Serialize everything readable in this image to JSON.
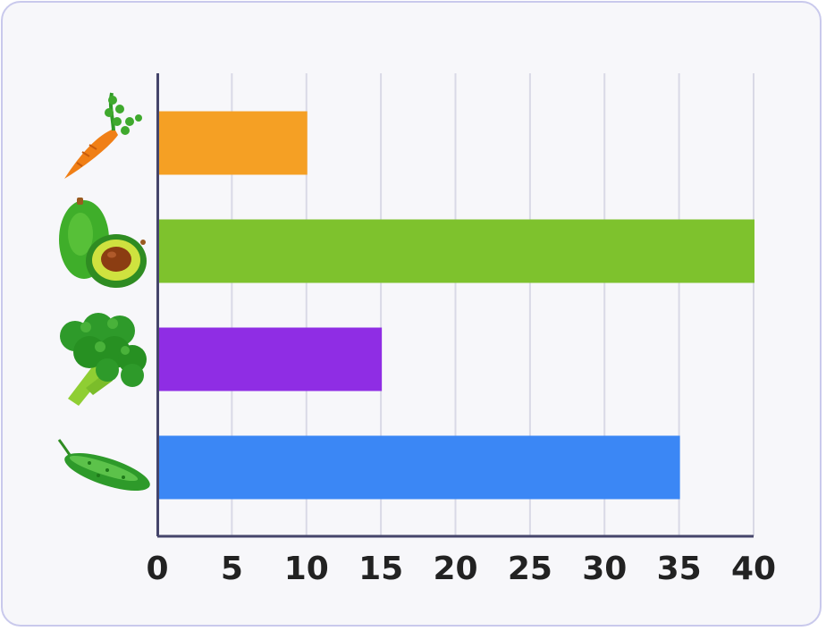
{
  "chart_data": {
    "type": "bar",
    "orientation": "horizontal",
    "categories": [
      "carrot",
      "avocado",
      "broccoli",
      "cucumber"
    ],
    "values": [
      10,
      40,
      15,
      35
    ],
    "colors": [
      "#f5a024",
      "#7ec22d",
      "#8f2de4",
      "#3b87f5"
    ],
    "category_icons": [
      "carrot-icon",
      "avocado-icon",
      "broccoli-icon",
      "cucumber-icon"
    ],
    "xlim": [
      0,
      40
    ],
    "xticks": [
      0,
      5,
      10,
      15,
      20,
      25,
      30,
      35,
      40
    ],
    "grid": true,
    "title": "",
    "xlabel": "",
    "ylabel": ""
  }
}
